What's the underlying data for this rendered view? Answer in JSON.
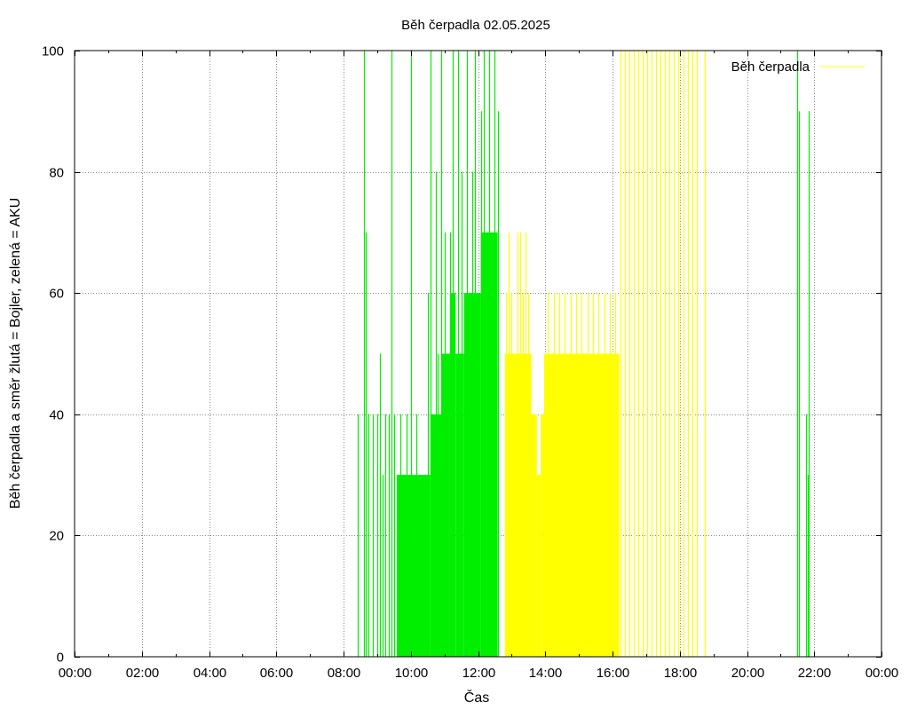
{
  "chart_data": {
    "type": "bar",
    "title": "Běh čerpadla 02.05.2025",
    "xlabel": "Čas",
    "ylabel": "Běh čerpadla a směr žlutá = Bojler, zelená = AKU",
    "xlim_hours": [
      0,
      24
    ],
    "ylim": [
      0,
      100
    ],
    "x_ticks": [
      "00:00",
      "02:00",
      "04:00",
      "06:00",
      "08:00",
      "10:00",
      "12:00",
      "14:00",
      "16:00",
      "18:00",
      "20:00",
      "22:00",
      "00:00"
    ],
    "y_ticks": [
      0,
      20,
      40,
      60,
      80,
      100
    ],
    "grid": true,
    "legend": {
      "position": "top-right",
      "entries": [
        {
          "label": "Běh čerpadla",
          "color": "#FFFF00"
        }
      ]
    },
    "colors": {
      "green": "#00EE00",
      "yellow": "#FFFF00"
    },
    "series": [
      {
        "color": "green",
        "note_direction": "AKU",
        "impulses": [
          {
            "t": "08:25",
            "v": 40
          },
          {
            "t": "08:37",
            "v": 100
          },
          {
            "t": "08:39",
            "v": 70
          },
          {
            "t": "08:45",
            "v": 40
          },
          {
            "t": "08:52",
            "v": 40
          },
          {
            "t": "09:00",
            "v": 40
          },
          {
            "t": "09:05",
            "v": 50
          },
          {
            "t": "09:10",
            "v": 30
          },
          {
            "t": "09:15",
            "v": 40
          },
          {
            "t": "09:20",
            "v": 40
          },
          {
            "t": "09:25",
            "v": 100
          },
          {
            "t": "09:30",
            "v": 40
          },
          {
            "t": "09:38",
            "v": 30
          },
          {
            "t": "09:42",
            "v": 40
          },
          {
            "t": "09:48",
            "v": 30
          },
          {
            "t": "09:52",
            "v": 40
          },
          {
            "t": "10:00",
            "v": 100
          },
          {
            "t": "10:10",
            "v": 40
          },
          {
            "t": "10:30",
            "v": 60
          },
          {
            "t": "10:35",
            "v": 100
          },
          {
            "t": "10:45",
            "v": 80
          },
          {
            "t": "10:48",
            "v": 50
          },
          {
            "t": "10:55",
            "v": 100
          },
          {
            "t": "11:00",
            "v": 70
          },
          {
            "t": "11:05",
            "v": 50
          },
          {
            "t": "11:10",
            "v": 70
          },
          {
            "t": "11:15",
            "v": 100
          },
          {
            "t": "11:25",
            "v": 100
          },
          {
            "t": "11:30",
            "v": 80
          },
          {
            "t": "11:40",
            "v": 100
          },
          {
            "t": "11:45",
            "v": 60
          },
          {
            "t": "11:50",
            "v": 80
          },
          {
            "t": "11:55",
            "v": 100
          },
          {
            "t": "12:05",
            "v": 90
          },
          {
            "t": "12:10",
            "v": 100
          },
          {
            "t": "12:15",
            "v": 70
          },
          {
            "t": "12:20",
            "v": 100
          },
          {
            "t": "12:25",
            "v": 70
          },
          {
            "t": "12:30",
            "v": 100
          },
          {
            "t": "12:35",
            "v": 90
          },
          {
            "t": "21:30",
            "v": 100
          },
          {
            "t": "21:32",
            "v": 90
          },
          {
            "t": "21:45",
            "v": 40
          },
          {
            "t": "21:48",
            "v": 30
          },
          {
            "t": "21:50",
            "v": 90
          }
        ],
        "filled_blocks": [
          {
            "from": "09:35",
            "to": "10:35",
            "v": 30
          },
          {
            "from": "10:35",
            "to": "10:55",
            "v": 40
          },
          {
            "from": "10:55",
            "to": "11:10",
            "v": 50
          },
          {
            "from": "11:10",
            "to": "11:20",
            "v": 60
          },
          {
            "from": "11:20",
            "to": "11:35",
            "v": 50
          },
          {
            "from": "11:35",
            "to": "12:05",
            "v": 60
          },
          {
            "from": "12:05",
            "to": "12:35",
            "v": 70
          }
        ]
      },
      {
        "name": "Běh čerpadla",
        "color": "yellow",
        "note_direction": "Bojler",
        "filled_blocks": [
          {
            "from": "12:48",
            "to": "13:35",
            "v": 50
          },
          {
            "from": "13:35",
            "to": "13:45",
            "v": 40
          },
          {
            "from": "13:45",
            "to": "13:52",
            "v": 30
          },
          {
            "from": "13:52",
            "to": "13:58",
            "v": 40
          },
          {
            "from": "13:58",
            "to": "16:12",
            "v": 50
          }
        ],
        "impulses": [
          {
            "t": "12:50",
            "v": 60
          },
          {
            "t": "12:55",
            "v": 70
          },
          {
            "t": "13:00",
            "v": 60
          },
          {
            "t": "13:10",
            "v": 70
          },
          {
            "t": "13:15",
            "v": 70
          },
          {
            "t": "13:20",
            "v": 60
          },
          {
            "t": "13:25",
            "v": 70
          },
          {
            "t": "13:30",
            "v": 60
          },
          {
            "t": "14:05",
            "v": 60
          },
          {
            "t": "14:15",
            "v": 60
          },
          {
            "t": "14:25",
            "v": 60
          },
          {
            "t": "14:35",
            "v": 60
          },
          {
            "t": "14:45",
            "v": 60
          },
          {
            "t": "14:55",
            "v": 60
          },
          {
            "t": "15:05",
            "v": 60
          },
          {
            "t": "15:15",
            "v": 60
          },
          {
            "t": "15:25",
            "v": 60
          },
          {
            "t": "15:35",
            "v": 60
          },
          {
            "t": "15:45",
            "v": 60
          },
          {
            "t": "15:55",
            "v": 60
          },
          {
            "t": "16:05",
            "v": 60
          },
          {
            "t": "16:15",
            "v": 100
          },
          {
            "t": "16:22",
            "v": 100
          },
          {
            "t": "16:30",
            "v": 100
          },
          {
            "t": "16:38",
            "v": 100
          },
          {
            "t": "16:46",
            "v": 100
          },
          {
            "t": "16:54",
            "v": 100
          },
          {
            "t": "17:02",
            "v": 100
          },
          {
            "t": "17:10",
            "v": 100
          },
          {
            "t": "17:18",
            "v": 100
          },
          {
            "t": "17:26",
            "v": 100
          },
          {
            "t": "17:34",
            "v": 100
          },
          {
            "t": "17:42",
            "v": 100
          },
          {
            "t": "17:50",
            "v": 100
          },
          {
            "t": "17:58",
            "v": 100
          },
          {
            "t": "18:06",
            "v": 100
          },
          {
            "t": "18:14",
            "v": 100
          },
          {
            "t": "18:22",
            "v": 100
          },
          {
            "t": "18:30",
            "v": 100
          },
          {
            "t": "18:45",
            "v": 100
          }
        ]
      }
    ]
  }
}
